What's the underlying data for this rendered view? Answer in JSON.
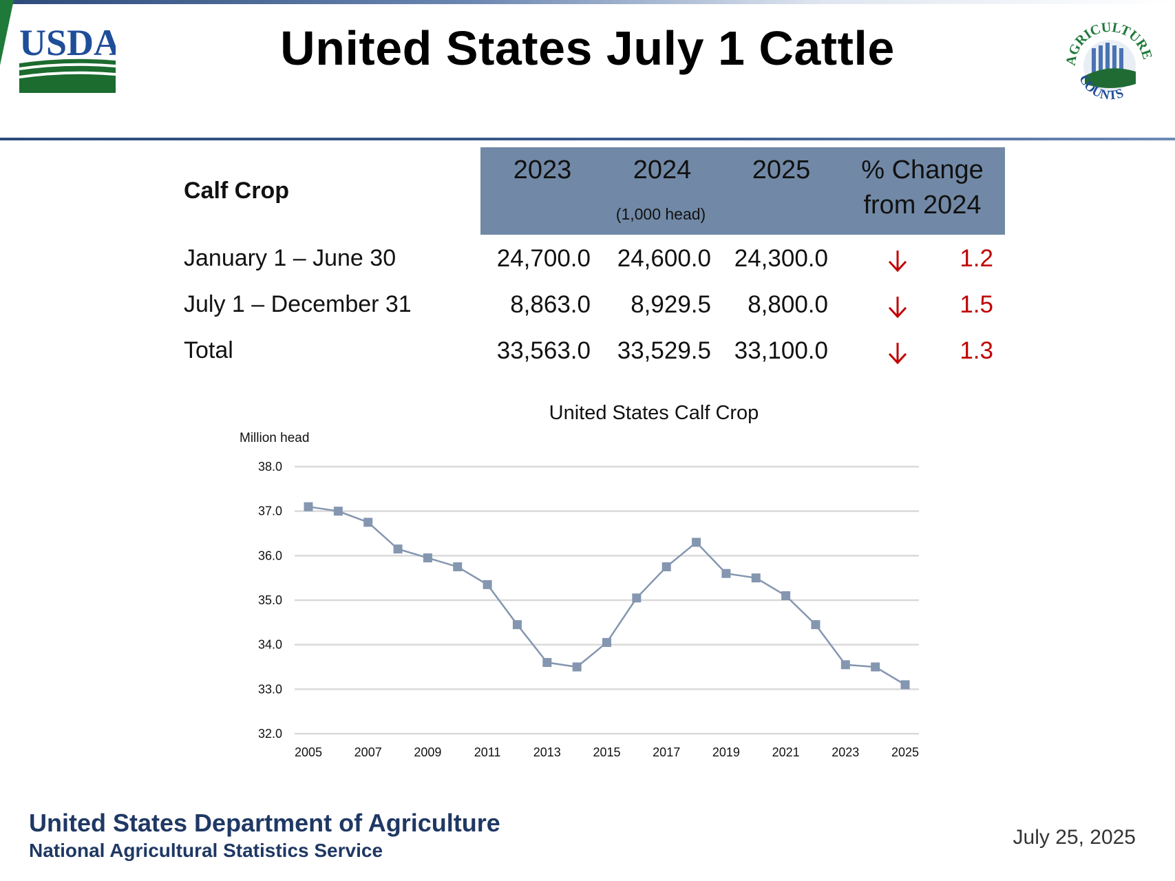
{
  "slide": {
    "title": "United States July 1 Cattle",
    "footer_department": "United States Department of Agriculture",
    "footer_service": "National Agricultural Statistics Service",
    "date": "July 25, 2025"
  },
  "logos": {
    "usda_text": "USDA",
    "seal_text_top": "AGRICULTURE",
    "seal_text_bottom": "COUNTS"
  },
  "table": {
    "section_label": "Calf Crop",
    "columns": [
      "2023",
      "2024",
      "2025",
      "% Change",
      "from 2024"
    ],
    "unit_note": "(1,000 head)",
    "rows": [
      {
        "label": "January 1 – June 30",
        "v2023": "24,700.0",
        "v2024": "24,600.0",
        "v2025": "24,300.0",
        "direction": "down",
        "pct": "1.2"
      },
      {
        "label": "July 1 – December 31",
        "v2023": "8,863.0",
        "v2024": "8,929.5",
        "v2025": "8,800.0",
        "direction": "down",
        "pct": "1.5"
      },
      {
        "label": "Total",
        "v2023": "33,563.0",
        "v2024": "33,529.5",
        "v2025": "33,100.0",
        "direction": "down",
        "pct": "1.3"
      }
    ],
    "colors": {
      "header_bg": "#7189a6",
      "decrease": "#c00000"
    }
  },
  "chart_data": {
    "type": "line",
    "title": "United States Calf Crop",
    "ylabel": "Million head",
    "xlabel": "",
    "ylim": [
      32.0,
      38.0
    ],
    "yticks": [
      "38.0",
      "37.0",
      "36.0",
      "35.0",
      "34.0",
      "33.0",
      "32.0"
    ],
    "xtick_labels": [
      "2005",
      "2007",
      "2009",
      "2011",
      "2013",
      "2015",
      "2017",
      "2019",
      "2021",
      "2023",
      "2025"
    ],
    "x": [
      2005,
      2006,
      2007,
      2008,
      2009,
      2010,
      2011,
      2012,
      2013,
      2014,
      2015,
      2016,
      2017,
      2018,
      2019,
      2020,
      2021,
      2022,
      2023,
      2024,
      2025
    ],
    "series": [
      {
        "values": [
          37.1,
          37.0,
          36.75,
          36.15,
          35.95,
          35.75,
          35.35,
          34.45,
          33.6,
          33.5,
          34.05,
          35.05,
          35.75,
          36.3,
          35.6,
          35.5,
          35.1,
          34.45,
          33.55,
          33.5,
          33.1
        ],
        "color": "#8496b0"
      }
    ],
    "grid": true,
    "gridline_color": "#d9d9d9"
  }
}
